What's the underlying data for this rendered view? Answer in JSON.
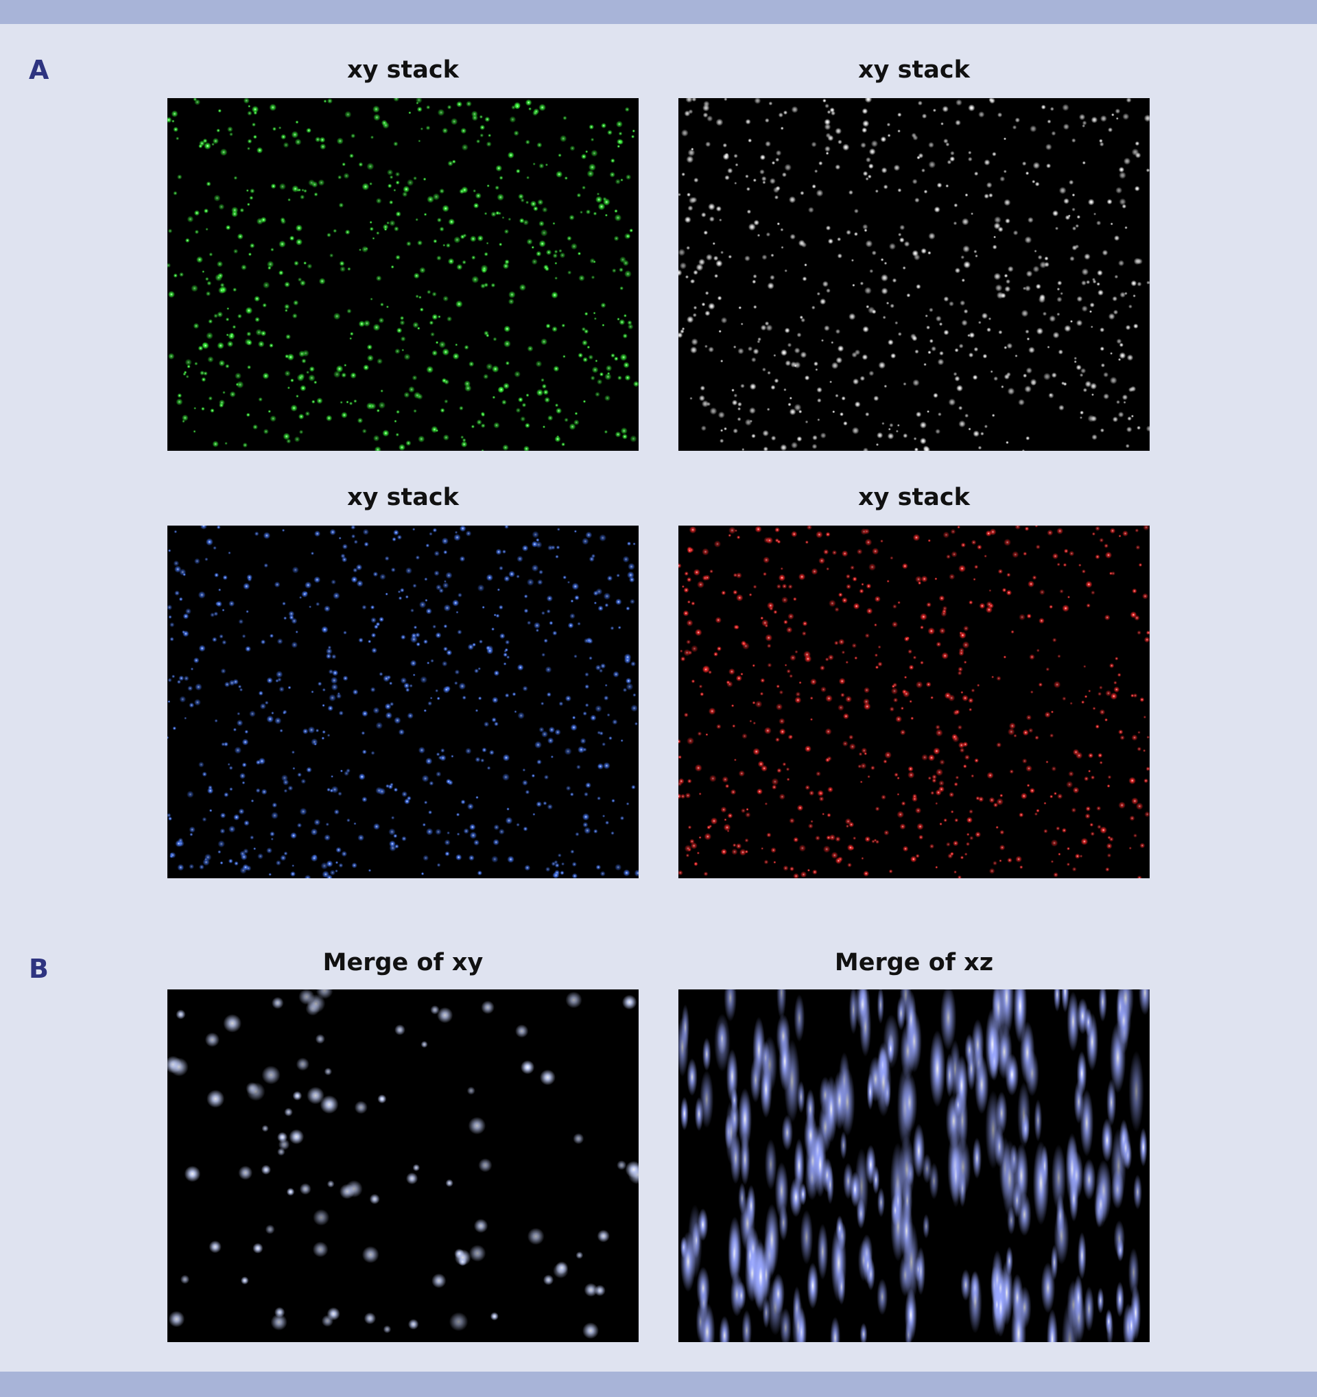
{
  "figure": {
    "panels": [
      {
        "label": "A",
        "images": [
          {
            "title": "xy stack",
            "color": "#3cff3c"
          },
          {
            "title": "xy stack",
            "color": "#f2f2f2"
          },
          {
            "title": "xy stack",
            "color": "#4a7dff"
          },
          {
            "title": "xy stack",
            "color": "#ff2a2a"
          }
        ]
      },
      {
        "label": "B",
        "images": [
          {
            "title": "Merge of xy",
            "color": "#c8d4ff"
          },
          {
            "title": "Merge of xz",
            "color": "#9aa8ff"
          }
        ]
      }
    ]
  }
}
